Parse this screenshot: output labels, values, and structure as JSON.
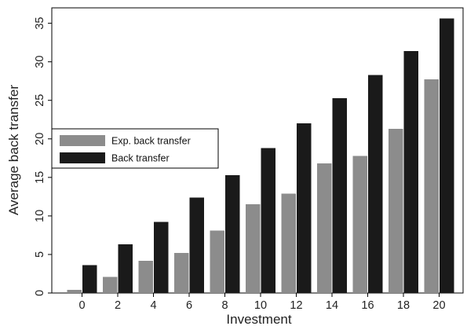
{
  "chart_data": {
    "type": "bar",
    "xlabel": "Investment",
    "ylabel": "Average back transfer",
    "categories": [
      "0",
      "2",
      "4",
      "6",
      "8",
      "10",
      "12",
      "14",
      "16",
      "18",
      "20"
    ],
    "series": [
      {
        "name": "Exp. back transfer",
        "color": "#8c8c8c",
        "values": [
          0.4,
          2.1,
          4.2,
          5.2,
          8.1,
          11.5,
          12.9,
          16.8,
          17.8,
          21.3,
          27.7
        ]
      },
      {
        "name": "Back transfer",
        "color": "#1a1a1a",
        "values": [
          3.6,
          6.3,
          9.2,
          12.4,
          15.3,
          18.8,
          22.0,
          25.3,
          28.3,
          31.4,
          35.6
        ]
      }
    ],
    "ylim": [
      0,
      37
    ],
    "yticks": [
      "0",
      "5",
      "10",
      "15",
      "20",
      "25",
      "30",
      "35"
    ],
    "grid": false,
    "legend_position": "left"
  }
}
